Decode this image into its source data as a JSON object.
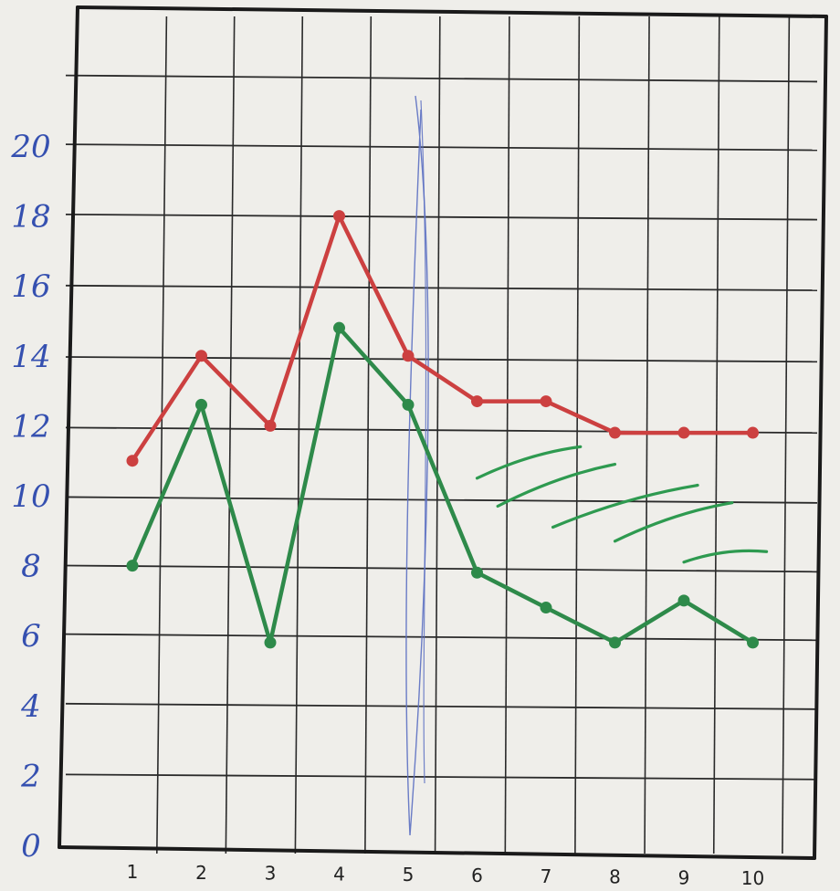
{
  "chart_data": {
    "type": "line",
    "title": "",
    "xlabel": "",
    "ylabel": "",
    "x": [
      1,
      2,
      3,
      4,
      5,
      6,
      7,
      8,
      9,
      10
    ],
    "x_tick_labels": [
      "1",
      "2",
      "3",
      "4",
      "5",
      "6",
      "7",
      "8",
      "9",
      "10"
    ],
    "y_tick_labels": [
      "0",
      "2",
      "4",
      "6",
      "8",
      "10",
      "12",
      "14",
      "16",
      "18",
      "20"
    ],
    "ylim": [
      0,
      24
    ],
    "grid": true,
    "legend": "none",
    "series": [
      {
        "color": "#cc4040",
        "values": [
          11,
          14,
          12,
          18,
          14,
          12.7,
          12.7,
          11.8,
          11.8,
          11.8
        ]
      },
      {
        "color": "#2e8a4a",
        "values": [
          8,
          12.6,
          5.8,
          14.8,
          12.6,
          7.8,
          6.8,
          5.8,
          7,
          5.8
        ]
      }
    ],
    "annotations": {
      "vertical_marker": {
        "x": 5,
        "color": "#5b6fc2"
      },
      "hatching": {
        "color": "#2e9a50",
        "x_range": [
          6,
          10
        ],
        "y_range": [
          8,
          11.5
        ]
      }
    }
  },
  "colors": {
    "paper": "#efeeea",
    "grid": "#2a2a2a",
    "axis": "#1a1a1a",
    "ytick_ink": "#3550b0"
  }
}
